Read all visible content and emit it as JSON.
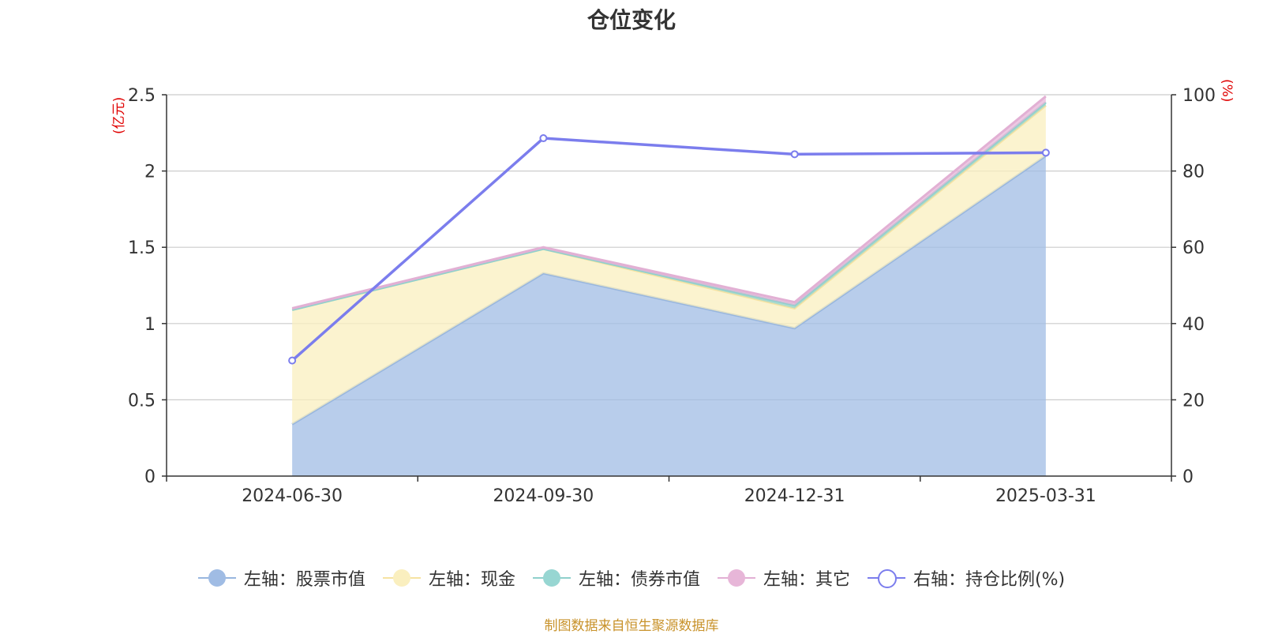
{
  "chart_data": {
    "type": "area",
    "title": "仓位变化",
    "left_unit": "(亿元)",
    "right_unit": "(%)",
    "categories": [
      "2024-06-30",
      "2024-09-30",
      "2024-12-31",
      "2025-03-31"
    ],
    "left_axis": {
      "ylim": [
        0,
        2.5
      ],
      "ticks": [
        "0",
        "0.5",
        "1",
        "1.5",
        "2",
        "2.5"
      ],
      "tick_values": [
        0,
        0.5,
        1,
        1.5,
        2,
        2.5
      ]
    },
    "right_axis": {
      "ylim": [
        0,
        100
      ],
      "ticks": [
        "0",
        "20",
        "40",
        "60",
        "80",
        "100"
      ],
      "tick_values": [
        0,
        20,
        40,
        60,
        80,
        100
      ]
    },
    "series": [
      {
        "name": "左轴：股票市值",
        "axis": "left",
        "kind": "stacked-area",
        "values": [
          0.34,
          1.33,
          0.97,
          2.1
        ],
        "color": "#a0bce4",
        "line": "#98b6de"
      },
      {
        "name": "左轴：现金",
        "axis": "left",
        "kind": "stacked-area",
        "values": [
          0.75,
          0.16,
          0.13,
          0.33
        ],
        "color": "#faefbf",
        "line": "#f6e3a2"
      },
      {
        "name": "左轴：债券市值",
        "axis": "left",
        "kind": "stacked-area",
        "values": [
          0.0,
          0.0,
          0.02,
          0.02
        ],
        "color": "#97d6d2",
        "line": "#8fd0cc"
      },
      {
        "name": "左轴：其它",
        "axis": "left",
        "kind": "stacked-area",
        "values": [
          0.01,
          0.01,
          0.02,
          0.04
        ],
        "color": "#e7b6d8",
        "line": "#e2b0d4"
      },
      {
        "name": "右轴：持仓比例(%)",
        "axis": "right",
        "kind": "line",
        "values": [
          30.3,
          88.6,
          84.4,
          84.8
        ],
        "color": "#7b7ded"
      }
    ],
    "grid": true,
    "legend_position": "bottom"
  },
  "footer": {
    "source": "制图数据来自恒生聚源数据库"
  }
}
